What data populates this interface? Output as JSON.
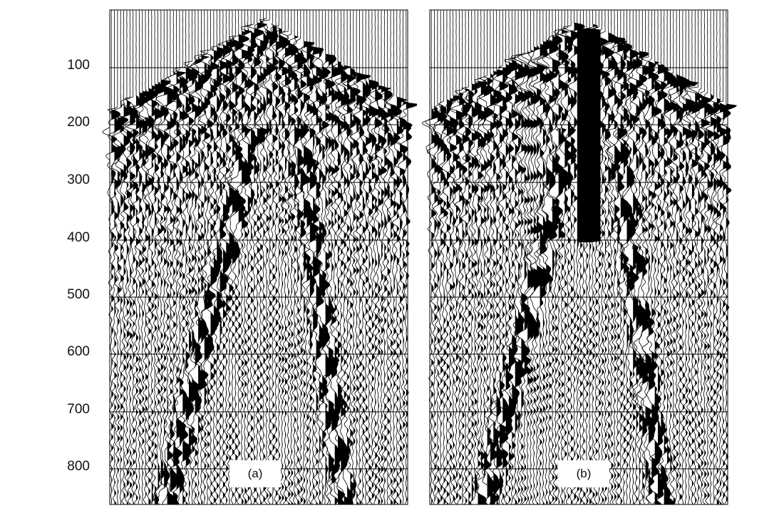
{
  "time_axis": {
    "tick_labels": [
      "100",
      "200",
      "300",
      "400",
      "500",
      "600",
      "700",
      "800"
    ]
  },
  "panels": [
    {
      "caption": "(a)"
    },
    {
      "caption": "(b)"
    }
  ],
  "colors": {
    "ink": "#000000",
    "paper": "#ffffff"
  }
}
